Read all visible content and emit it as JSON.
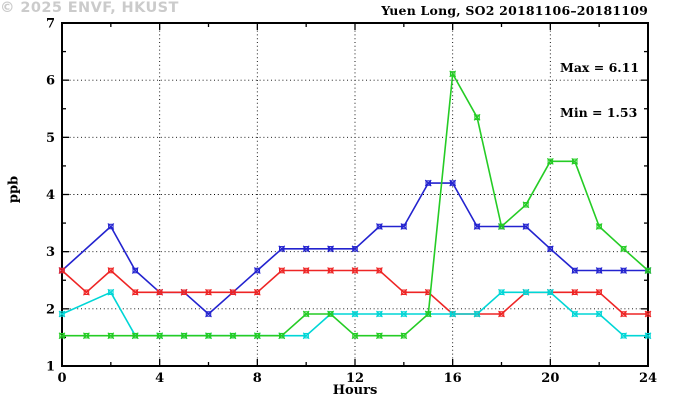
{
  "chart_data": {
    "type": "line",
    "title": "Yuen Long, SO2 20181106–20181109",
    "xlabel": "Hours",
    "ylabel": "ppb",
    "xlim": [
      0,
      24
    ],
    "ylim": [
      1,
      7
    ],
    "xticks_major": [
      0,
      4,
      8,
      12,
      16,
      20,
      24
    ],
    "xticks_minor": [
      2,
      6,
      10,
      14,
      18,
      22
    ],
    "yticks_major": [
      1,
      2,
      3,
      4,
      5,
      6,
      7
    ],
    "yticks_minor": [
      1.5,
      2.5,
      3.5,
      4.5,
      5.5,
      6.5
    ],
    "grid_x": [
      4,
      8,
      12,
      16,
      20
    ],
    "grid_y": [
      2,
      3,
      4,
      5,
      6
    ],
    "grid_on": true,
    "legend": "none",
    "annotations": {
      "max": "Max = 6.11",
      "min": "Min = 1.53"
    },
    "watermark": "© 2025 ENVF, HKUST",
    "x": [
      0,
      1,
      2,
      3,
      4,
      5,
      6,
      7,
      8,
      9,
      10,
      11,
      12,
      13,
      14,
      15,
      16,
      17,
      18,
      19,
      20,
      21,
      22,
      23,
      24
    ],
    "series": [
      {
        "name": "series-blue",
        "color": "#2323cf",
        "values": [
          2.67,
          null,
          3.44,
          2.67,
          2.29,
          2.29,
          1.91,
          2.29,
          2.67,
          3.05,
          3.05,
          3.05,
          3.05,
          3.44,
          3.44,
          4.2,
          4.2,
          3.44,
          3.44,
          3.44,
          3.05,
          2.67,
          2.67,
          2.67,
          2.67
        ]
      },
      {
        "name": "series-red",
        "color": "#ee2525",
        "values": [
          2.67,
          2.29,
          2.67,
          2.29,
          2.29,
          2.29,
          2.29,
          2.29,
          2.29,
          2.67,
          2.67,
          2.67,
          2.67,
          2.67,
          2.29,
          2.29,
          1.91,
          1.91,
          1.91,
          2.29,
          2.29,
          2.29,
          2.29,
          1.91,
          1.91
        ]
      },
      {
        "name": "series-cyan",
        "color": "#00d6d6",
        "values": [
          1.91,
          null,
          2.29,
          1.53,
          1.53,
          1.53,
          1.53,
          1.53,
          1.53,
          1.53,
          1.53,
          1.91,
          1.91,
          1.91,
          1.91,
          1.91,
          1.91,
          1.91,
          2.29,
          2.29,
          2.29,
          1.91,
          1.91,
          1.53,
          1.53
        ]
      },
      {
        "name": "series-green",
        "color": "#25cc25",
        "values": [
          1.53,
          1.53,
          1.53,
          1.53,
          1.53,
          1.53,
          1.53,
          1.53,
          1.53,
          1.53,
          1.91,
          1.91,
          1.53,
          1.53,
          1.53,
          1.91,
          6.11,
          5.35,
          3.44,
          3.82,
          4.58,
          4.58,
          3.44,
          3.05,
          2.67
        ]
      }
    ]
  }
}
